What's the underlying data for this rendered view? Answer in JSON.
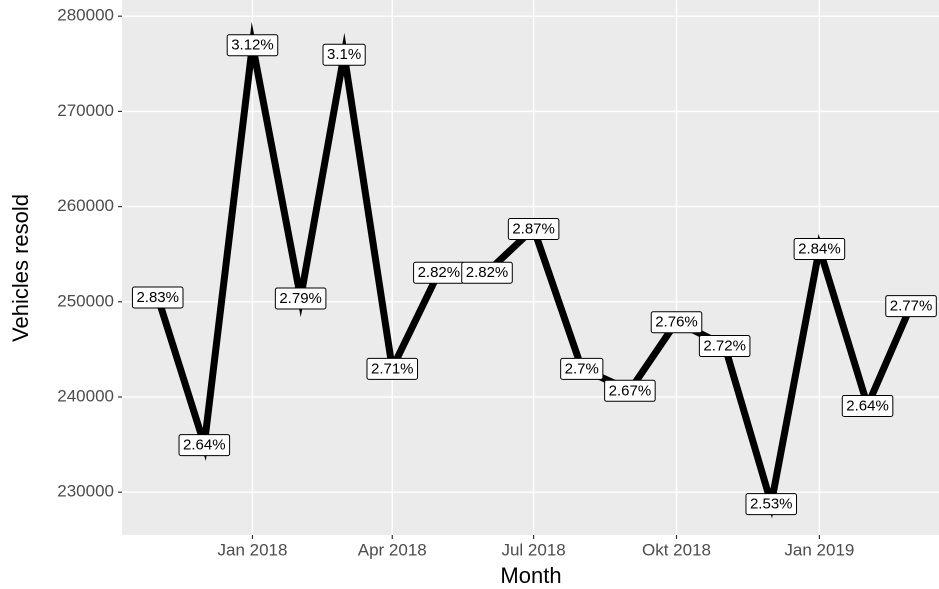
{
  "chart_data": {
    "type": "line",
    "x_label": "Month",
    "y_label": "Vehicles resold",
    "x": [
      "2017-11",
      "2017-12",
      "2018-01",
      "2018-02",
      "2018-03",
      "2018-04",
      "2018-05",
      "2018-06",
      "2018-07",
      "2018-08",
      "2018-09",
      "2018-10",
      "2018-11",
      "2018-12",
      "2019-01",
      "2019-02",
      "2019-03"
    ],
    "series": [
      {
        "color": "#000000",
        "values": [
          250500,
          235000,
          277000,
          250400,
          276000,
          243000,
          253100,
          253100,
          257700,
          243000,
          240700,
          247900,
          245400,
          228800,
          255600,
          239100,
          249600
        ]
      }
    ],
    "point_labels": [
      "2.83%",
      "2.64%",
      "3.12%",
      "2.79%",
      "3.1%",
      "2.71%",
      "2.82%",
      "2.82%",
      "2.87%",
      "2.7%",
      "2.67%",
      "2.76%",
      "2.72%",
      "2.53%",
      "2.84%",
      "2.64%",
      "2.77%"
    ],
    "xlim": [
      "2017-10-09",
      "2019-03-19"
    ],
    "xticks": [
      {
        "value": "2018-01",
        "label": "Jan 2018"
      },
      {
        "value": "2018-04",
        "label": "Apr 2018"
      },
      {
        "value": "2018-07",
        "label": "Jul 2018"
      },
      {
        "value": "2018-10",
        "label": "Okt 2018"
      },
      {
        "value": "2019-01",
        "label": "Jan 2019"
      }
    ],
    "ylim": [
      225500,
      281700
    ],
    "yticks": [
      230000,
      240000,
      250000,
      260000,
      270000,
      280000
    ],
    "grid": true
  }
}
